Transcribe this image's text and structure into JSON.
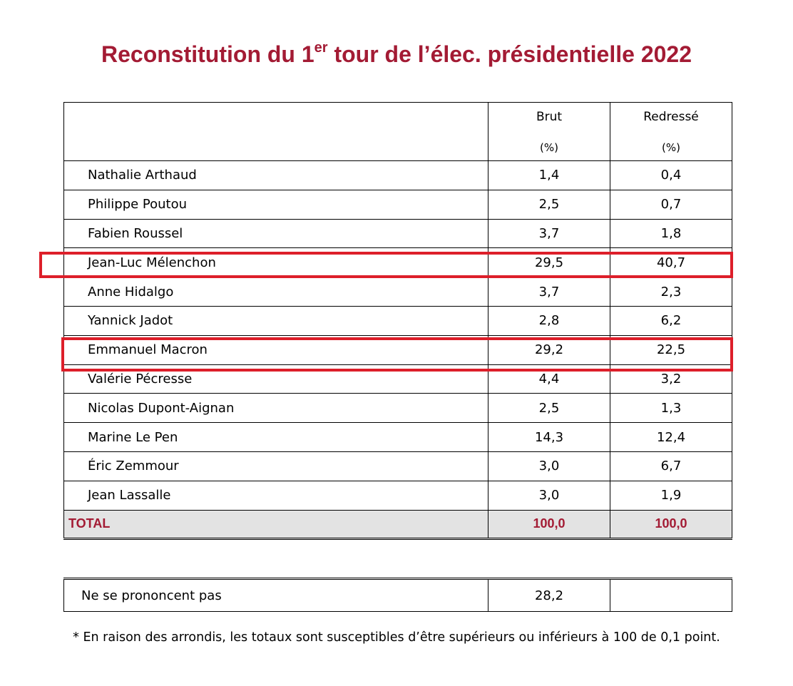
{
  "title": {
    "pre": "Reconstitution du 1",
    "sup": "er",
    "post": " tour de l’élec. présidentielle 2022"
  },
  "columns": {
    "brut": "Brut",
    "brut_unit": "(%)",
    "redresse": "Redressé",
    "redresse_unit": "(%)"
  },
  "rows": [
    {
      "name": "Nathalie Arthaud",
      "brut": "1,4",
      "redresse": "0,4"
    },
    {
      "name": "Philippe Poutou",
      "brut": "2,5",
      "redresse": "0,7"
    },
    {
      "name": "Fabien Roussel",
      "brut": "3,7",
      "redresse": "1,8"
    },
    {
      "name": "Jean-Luc Mélenchon",
      "brut": "29,5",
      "redresse": "40,7"
    },
    {
      "name": "Anne Hidalgo",
      "brut": "3,7",
      "redresse": "2,3"
    },
    {
      "name": "Yannick Jadot",
      "brut": "2,8",
      "redresse": "6,2"
    },
    {
      "name": "Emmanuel Macron",
      "brut": "29,2",
      "redresse": "22,5"
    },
    {
      "name": "Valérie Pécresse",
      "brut": "4,4",
      "redresse": "3,2"
    },
    {
      "name": "Nicolas Dupont-Aignan",
      "brut": "2,5",
      "redresse": "1,3"
    },
    {
      "name": "Marine Le Pen",
      "brut": "14,3",
      "redresse": "12,4"
    },
    {
      "name": "Éric Zemmour",
      "brut": "3,0",
      "redresse": "6,7"
    },
    {
      "name": "Jean Lassalle",
      "brut": "3,0",
      "redresse": "1,9"
    }
  ],
  "total": {
    "label": "TOTAL",
    "brut": "100,0",
    "redresse": "100,0"
  },
  "nsp": {
    "label": "Ne se prononcent pas",
    "brut": "28,2",
    "redresse": ""
  },
  "footnote": "* En raison des arrondis, les totaux sont susceptibles d’être supérieurs ou inférieurs à 100 de 0,1 point.",
  "colors": {
    "title": "#a31b34",
    "highlight": "#dd1f2a",
    "total_bg": "#e3e3e3"
  }
}
